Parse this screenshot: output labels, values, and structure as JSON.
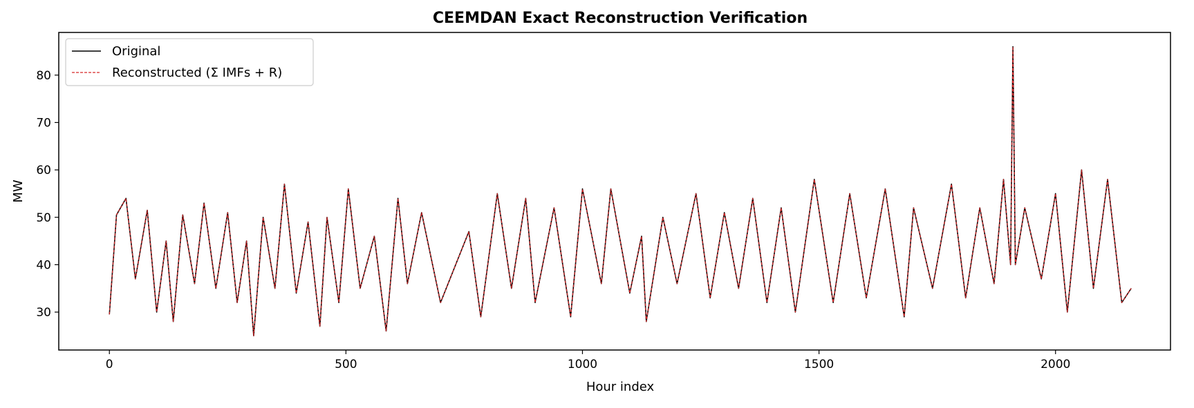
{
  "chart_data": {
    "type": "line",
    "title": "CEEMDAN Exact Reconstruction Verification",
    "xlabel": "Hour index",
    "ylabel": "MW",
    "xlim": [
      -107,
      2243
    ],
    "ylim": [
      22,
      89
    ],
    "xticks": [
      0,
      500,
      1000,
      1500,
      2000
    ],
    "yticks": [
      30,
      40,
      50,
      60,
      70,
      80
    ],
    "grid": false,
    "legend_position": "upper-left",
    "series": [
      {
        "name": "Original",
        "color": "#000000",
        "style": "solid",
        "x": [
          0,
          15,
          35,
          55,
          80,
          100,
          120,
          135,
          155,
          180,
          200,
          225,
          250,
          270,
          290,
          305,
          325,
          350,
          370,
          395,
          420,
          445,
          460,
          485,
          505,
          530,
          560,
          585,
          610,
          630,
          660,
          700,
          760,
          785,
          820,
          850,
          880,
          900,
          940,
          975,
          1000,
          1040,
          1060,
          1100,
          1125,
          1135,
          1170,
          1200,
          1240,
          1270,
          1300,
          1330,
          1360,
          1390,
          1420,
          1450,
          1490,
          1530,
          1565,
          1600,
          1640,
          1680,
          1700,
          1740,
          1780,
          1810,
          1840,
          1870,
          1890,
          1905,
          1910,
          1915,
          1935,
          1970,
          2000,
          2025,
          2055,
          2080,
          2110,
          2140,
          2160
        ],
        "values": [
          29.5,
          50.5,
          54,
          37,
          51.5,
          30,
          45,
          28,
          50.5,
          36,
          53,
          35,
          51,
          32,
          45,
          25,
          50,
          35,
          57,
          34,
          49,
          27,
          50,
          32,
          56,
          35,
          46,
          26,
          54,
          36,
          51,
          32,
          47,
          29,
          55,
          35,
          54,
          32,
          52,
          29,
          56,
          36,
          56,
          34,
          46,
          28,
          50,
          36,
          55,
          33,
          51,
          35,
          54,
          32,
          52,
          30,
          58,
          32,
          55,
          33,
          56,
          29,
          52,
          35,
          57,
          33,
          52,
          36,
          58,
          40,
          86,
          40,
          52,
          37,
          55,
          30,
          60,
          35,
          58,
          32,
          35
        ]
      },
      {
        "name": "Reconstructed (Σ IMFs + R)",
        "color": "#d62728",
        "style": "dashed",
        "x": [
          0,
          15,
          35,
          55,
          80,
          100,
          120,
          135,
          155,
          180,
          200,
          225,
          250,
          270,
          290,
          305,
          325,
          350,
          370,
          395,
          420,
          445,
          460,
          485,
          505,
          530,
          560,
          585,
          610,
          630,
          660,
          700,
          760,
          785,
          820,
          850,
          880,
          900,
          940,
          975,
          1000,
          1040,
          1060,
          1100,
          1125,
          1135,
          1170,
          1200,
          1240,
          1270,
          1300,
          1330,
          1360,
          1390,
          1420,
          1450,
          1490,
          1530,
          1565,
          1600,
          1640,
          1680,
          1700,
          1740,
          1780,
          1810,
          1840,
          1870,
          1890,
          1905,
          1910,
          1915,
          1935,
          1970,
          2000,
          2025,
          2055,
          2080,
          2110,
          2140,
          2160
        ],
        "values": [
          29.5,
          50.5,
          54,
          37,
          51.5,
          30,
          45,
          28,
          50.5,
          36,
          53,
          35,
          51,
          32,
          45,
          25,
          50,
          35,
          57,
          34,
          49,
          27,
          50,
          32,
          56,
          35,
          46,
          26,
          54,
          36,
          51,
          32,
          47,
          29,
          55,
          35,
          54,
          32,
          52,
          29,
          56,
          36,
          56,
          34,
          46,
          28,
          50,
          36,
          55,
          33,
          51,
          35,
          54,
          32,
          52,
          30,
          58,
          32,
          55,
          33,
          56,
          29,
          52,
          35,
          57,
          33,
          52,
          36,
          58,
          40,
          86,
          40,
          52,
          37,
          55,
          30,
          60,
          35,
          58,
          32,
          35
        ]
      }
    ]
  }
}
